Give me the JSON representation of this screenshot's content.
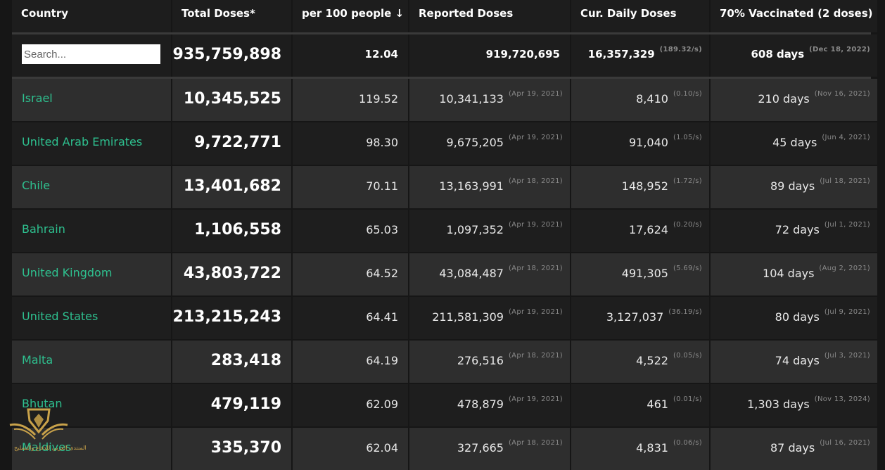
{
  "header": {
    "country": "Country",
    "total_doses": "Total Doses*",
    "per_100": "per 100 people ↓",
    "reported": "Reported Doses",
    "cur_daily": "Cur. Daily Doses",
    "vaccinated": "70% Vaccinated (2 doses)"
  },
  "search": {
    "placeholder": "Search..."
  },
  "totals": {
    "total_doses": "935,759,898",
    "per_100": "12.04",
    "reported": "919,720,695",
    "cur_daily": "16,357,329",
    "cur_daily_rate": "(189.32/s)",
    "vaccinated_days": "608 days",
    "vaccinated_date": "(Dec 18, 2022)"
  },
  "rows": [
    {
      "country": "Israel",
      "total": "10,345,525",
      "per": "119.52",
      "reported": "10,341,133",
      "reported_date": "(Apr 19, 2021)",
      "cur": "8,410",
      "rate": "(0.10/s)",
      "days": "210 days",
      "date": "(Nov 16, 2021)"
    },
    {
      "country": "United Arab Emirates",
      "total": "9,722,771",
      "per": "98.30",
      "reported": "9,675,205",
      "reported_date": "(Apr 19, 2021)",
      "cur": "91,040",
      "rate": "(1.05/s)",
      "days": "45 days",
      "date": "(Jun 4, 2021)"
    },
    {
      "country": "Chile",
      "total": "13,401,682",
      "per": "70.11",
      "reported": "13,163,991",
      "reported_date": "(Apr 18, 2021)",
      "cur": "148,952",
      "rate": "(1.72/s)",
      "days": "89 days",
      "date": "(Jul 18, 2021)"
    },
    {
      "country": "Bahrain",
      "total": "1,106,558",
      "per": "65.03",
      "reported": "1,097,352",
      "reported_date": "(Apr 19, 2021)",
      "cur": "17,624",
      "rate": "(0.20/s)",
      "days": "72 days",
      "date": "(Jul 1, 2021)"
    },
    {
      "country": "United Kingdom",
      "total": "43,803,722",
      "per": "64.52",
      "reported": "43,084,487",
      "reported_date": "(Apr 18, 2021)",
      "cur": "491,305",
      "rate": "(5.69/s)",
      "days": "104 days",
      "date": "(Aug 2, 2021)"
    },
    {
      "country": "United States",
      "total": "213,215,243",
      "per": "64.41",
      "reported": "211,581,309",
      "reported_date": "(Apr 19, 2021)",
      "cur": "3,127,037",
      "rate": "(36.19/s)",
      "days": "80 days",
      "date": "(Jul 9, 2021)"
    },
    {
      "country": "Malta",
      "total": "283,418",
      "per": "64.19",
      "reported": "276,516",
      "reported_date": "(Apr 18, 2021)",
      "cur": "4,522",
      "rate": "(0.05/s)",
      "days": "74 days",
      "date": "(Jul 3, 2021)"
    },
    {
      "country": "Bhutan",
      "total": "479,119",
      "per": "62.09",
      "reported": "478,879",
      "reported_date": "(Apr 19, 2021)",
      "cur": "461",
      "rate": "(0.01/s)",
      "days": "1,303 days",
      "date": "(Nov 13, 2024)"
    },
    {
      "country": "Maldives",
      "total": "335,370",
      "per": "62.04",
      "reported": "327,665",
      "reported_date": "(Apr 18, 2021)",
      "cur": "4,831",
      "rate": "(0.06/s)",
      "days": "87 days",
      "date": "(Jul 16, 2021)"
    }
  ],
  "watermark": {
    "caption": "المنتدى العربي للدفاع والتسليح",
    "logo": "forum-logo"
  },
  "colors": {
    "country_link": "#2ec08f",
    "row_even": "#2e2e2e",
    "row_odd": "#1e1e1e"
  }
}
